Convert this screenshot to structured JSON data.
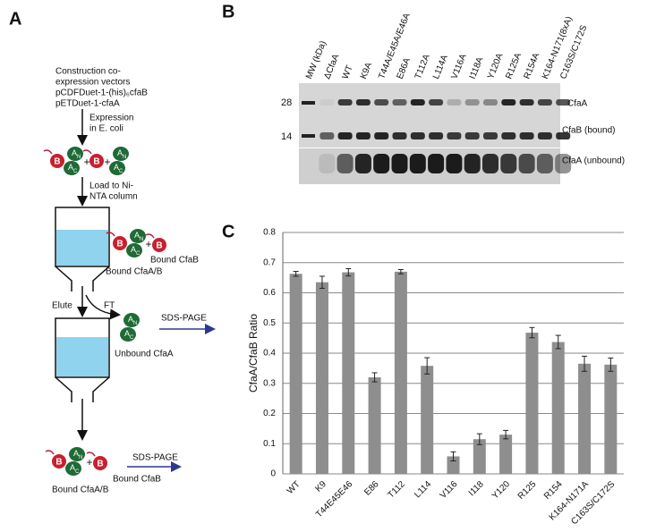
{
  "panel_labels": [
    "A",
    "B",
    "C"
  ],
  "diagram": {
    "construction": [
      "Construction co-",
      "expression vectors",
      "pCDFDuet-1-(his)₆cfaB",
      "pETDuet-1-cfaA"
    ],
    "expression": [
      "Expression",
      "in E. coli"
    ],
    "load": [
      "Load to Ni-",
      "NTA column"
    ],
    "bound_complex": "Bound CfaA/B",
    "bound_b": "Bound CfaB",
    "elute": "Elute",
    "ft": "FT",
    "sds_page": "SDS-PAGE",
    "unbound": "Unbound CfaA",
    "plus": "+",
    "protein": {
      "b": "B",
      "a": "A",
      "n": "N",
      "c": "C"
    }
  },
  "gel": {
    "lanes": [
      "MW (kDa)",
      "ΔCfaA",
      "WT",
      "K9A",
      "T44A/E45A/E46A",
      "E86A",
      "T112A",
      "L114A",
      "V116A",
      "I118A",
      "Y120A",
      "R125A",
      "R154A",
      "K164-N171(8xA)",
      "C163S/C172S"
    ],
    "markers": [
      "28",
      "14"
    ],
    "band_labels": [
      "CfaA",
      "CfaB (bound)",
      "CfaA (unbound)"
    ]
  },
  "chart_data": {
    "type": "bar",
    "y_label": "CfaA/CfaB Ratio",
    "categories": [
      "WT",
      "K9",
      "T44E45E46",
      "E86",
      "T112",
      "L114",
      "V116",
      "I118",
      "Y120",
      "R125",
      "R154",
      "K164-N171A",
      "C163S/C172S"
    ],
    "values": [
      0.663,
      0.635,
      0.668,
      0.32,
      0.67,
      0.358,
      0.058,
      0.115,
      0.13,
      0.468,
      0.437,
      0.365,
      0.362
    ],
    "errors": [
      0.008,
      0.02,
      0.012,
      0.015,
      0.007,
      0.027,
      0.015,
      0.018,
      0.014,
      0.017,
      0.022,
      0.025,
      0.022
    ],
    "color": "#8e8e8e",
    "ylim": [
      0,
      0.8
    ],
    "yticks": [
      0,
      0.1,
      0.2,
      0.3,
      0.4,
      0.5,
      0.6,
      0.7,
      0.8
    ],
    "grid": true
  }
}
